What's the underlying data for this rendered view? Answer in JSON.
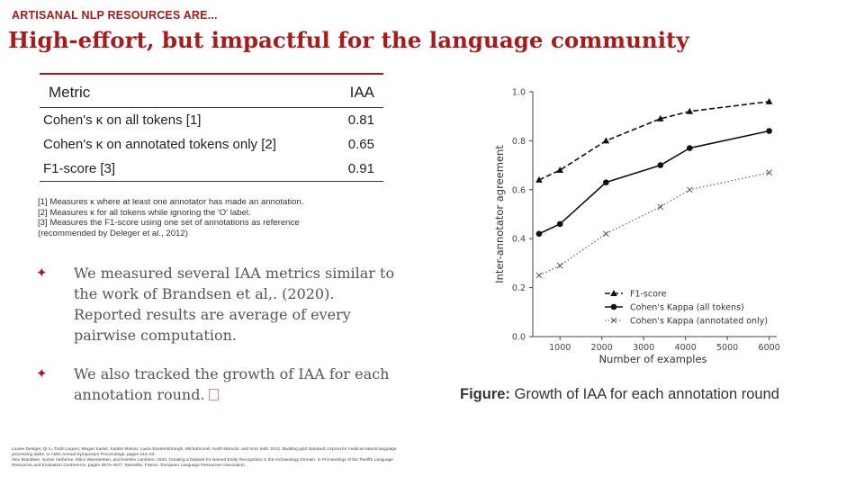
{
  "header": {
    "kicker": "ARTISANAL NLP RESOURCES ARE...",
    "title": "High-effort, but impactful for the language community"
  },
  "table": {
    "headers": [
      "Metric",
      "IAA"
    ],
    "rows": [
      {
        "metric": "Cohen's κ on all tokens [1]",
        "iaa": "0.81"
      },
      {
        "metric": "Cohen's κ on annotated tokens only [2]",
        "iaa": "0.65"
      },
      {
        "metric": "F1-score [3]",
        "iaa": "0.91"
      }
    ]
  },
  "notes": [
    "[1] Measures κ where at least one annotator has made an annotation.",
    "[2] Measures  κ for all tokens while ignoring the 'O' label.",
    "[3] Measures the F1-score using one set of annotations as reference",
    "(recommended by Deleger et al., 2012)"
  ],
  "bullets": [
    "We measured several IAA metrics similar to the work of Brandsen et al,. (2020). Reported results are average of every pairwise computation.",
    "We also tracked the growth of IAA for each annotation round."
  ],
  "caption": {
    "bold": "Figure:",
    "text": " Growth of IAA for each annotation round"
  },
  "references": [
    "Louise Deleger, Qi Li, Todd Lingren, Megan Kaiser, Katalin Molnar, Laura Stoutenborough, Michal Kouril, Keith Marsolo, and Imre Solti. 2012. Building gold standard corpora for medical natural language processing tasks. In AMIA Annual Symposium Proceedings, pages 144–53",
    "Alex Brandsen, Suzan Verberne, Milco Wansleeben, and Karsten Lambers. 2020. Creating a Dataset for Named Entity Recognition in the Archaeology Domain. In Proceedings of the Twelfth Language Resources and Evaluation Conference, pages 4573–4577, Marseille, France. European Language Resources Association."
  ],
  "colors": {
    "accent": "#a51c1c"
  },
  "chart_data": {
    "type": "line",
    "xlabel": "Number of examples",
    "ylabel": "Inter-annotator agreement",
    "xlim": [
      350,
      6180
    ],
    "ylim": [
      0.0,
      1.0
    ],
    "xticks": [
      1000,
      2000,
      3000,
      4000,
      5000,
      6000
    ],
    "yticks": [
      0.0,
      0.2,
      0.4,
      0.6,
      0.8,
      1.0
    ],
    "ytick_labels": [
      "0.0",
      "0.2",
      "0.4",
      "0.6",
      "0.8",
      "1.0"
    ],
    "grid": false,
    "legend_position": "lower-right",
    "series": [
      {
        "name": "F1-score",
        "x": [
          500,
          1000,
          2100,
          3400,
          4100,
          6000
        ],
        "values": [
          0.64,
          0.68,
          0.8,
          0.89,
          0.92,
          0.96
        ],
        "style": "dashed",
        "marker": "triangle"
      },
      {
        "name": "Cohen's Kappa (all tokens)",
        "x": [
          500,
          1000,
          2100,
          3400,
          4100,
          6000
        ],
        "values": [
          0.42,
          0.46,
          0.63,
          0.7,
          0.77,
          0.84
        ],
        "style": "solid",
        "marker": "circle"
      },
      {
        "name": "Cohen's Kappa (annotated only)",
        "x": [
          500,
          1000,
          2100,
          3400,
          4100,
          6000
        ],
        "values": [
          0.25,
          0.29,
          0.42,
          0.53,
          0.6,
          0.67
        ],
        "style": "dotted",
        "marker": "x"
      }
    ]
  }
}
